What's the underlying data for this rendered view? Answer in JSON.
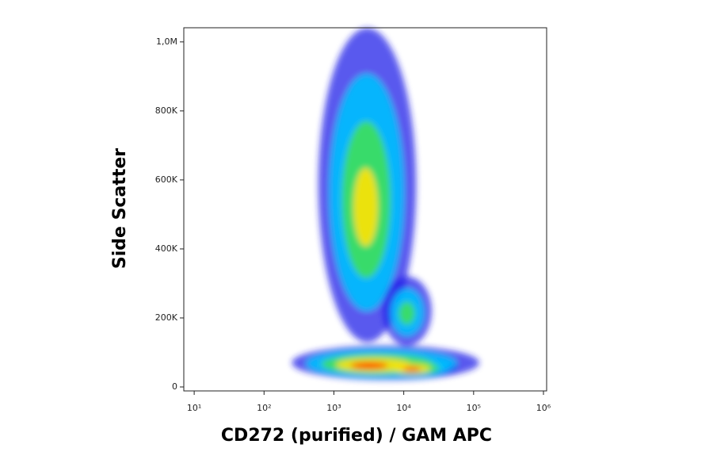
{
  "chart_data": {
    "type": "density",
    "x_label": "CD272 (purified) / GAM APC",
    "y_label": "Side Scatter",
    "x_log": true,
    "xlim": [
      7.1,
      1110000
    ],
    "xticks": [
      {
        "value": 10,
        "label": "10¹"
      },
      {
        "value": 100,
        "label": "10²"
      },
      {
        "value": 1000,
        "label": "10³"
      },
      {
        "value": 10000,
        "label": "10⁴"
      },
      {
        "value": 100000,
        "label": "10⁵"
      },
      {
        "value": 1000000,
        "label": "10⁶"
      }
    ],
    "ylim": [
      -11500,
      1041000
    ],
    "yticks": [
      0,
      {
        "value": 200000,
        "label": "200K"
      },
      {
        "value": 400000,
        "label": "400K"
      },
      {
        "value": 600000,
        "label": "600K"
      },
      {
        "value": 800000,
        "label": "800K"
      },
      {
        "value": 1000000,
        "label": "1,0M"
      }
    ],
    "density_colors": [
      "#1f1fe8",
      "#00c0ff",
      "#3ee05a",
      "#ffe200",
      "#ff2a00"
    ],
    "populations": [
      {
        "x": 2800,
        "y": 60000,
        "x_range": [
          250,
          120000
        ],
        "y_range": [
          20000,
          120000
        ],
        "peak": 4
      },
      {
        "x": 13000,
        "y": 50000,
        "x_range": [
          3000,
          60000
        ],
        "y_range": [
          25000,
          90000
        ],
        "peak": 4
      },
      {
        "x": 2800,
        "y": 500000,
        "x_range": [
          600,
          15000
        ],
        "y_range": [
          130000,
          1040000
        ],
        "peak": 3
      },
      {
        "x": 11000,
        "y": 210000,
        "x_range": [
          5000,
          25000
        ],
        "y_range": [
          120000,
          320000
        ],
        "peak": 2
      }
    ]
  }
}
